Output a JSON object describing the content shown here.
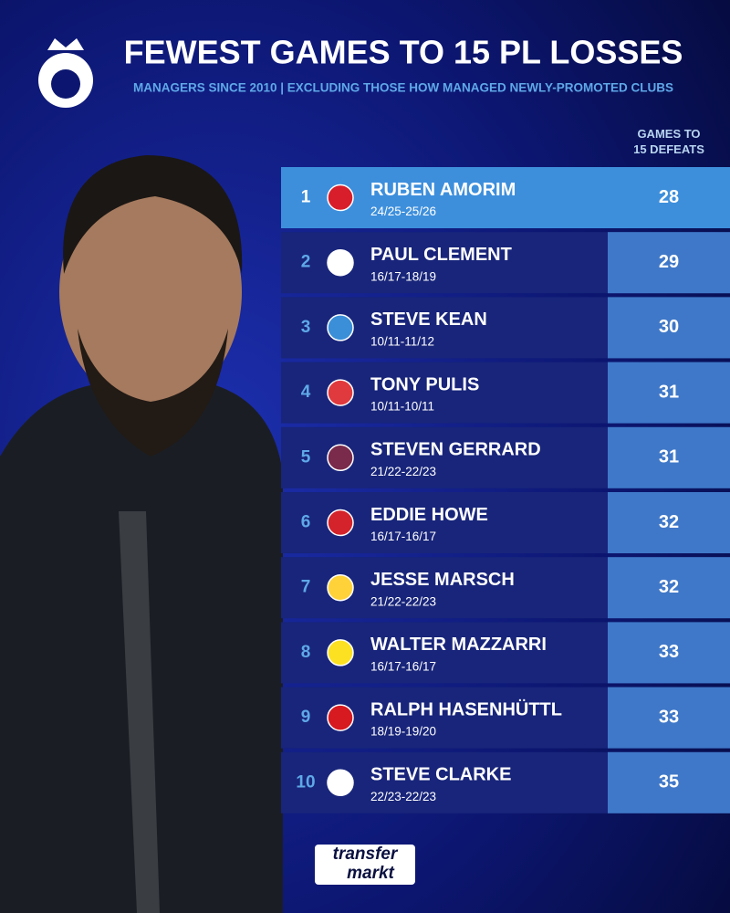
{
  "header": {
    "title": "FEWEST GAMES TO 15 PL LOSSES",
    "subtitle": "MANAGERS SINCE 2010 | EXCLUDING THOSE HOW MANAGED NEWLY-PROMOTED CLUBS"
  },
  "table": {
    "column_header": "GAMES TO 15 DEFEATS",
    "rows": [
      {
        "rank": 1,
        "name": "RUBEN AMORIM",
        "seasons": "24/25-25/26",
        "games": 28
      },
      {
        "rank": 2,
        "name": "PAUL CLEMENT",
        "seasons": "16/17-18/19",
        "games": 29
      },
      {
        "rank": 3,
        "name": "STEVE KEAN",
        "seasons": "10/11-11/12",
        "games": 30
      },
      {
        "rank": 4,
        "name": "TONY PULIS",
        "seasons": "10/11-10/11",
        "games": 31
      },
      {
        "rank": 5,
        "name": "STEVEN GERRARD",
        "seasons": "21/22-22/23",
        "games": 31
      },
      {
        "rank": 6,
        "name": "EDDIE HOWE",
        "seasons": "16/17-16/17",
        "games": 32
      },
      {
        "rank": 7,
        "name": "JESSE MARSCH",
        "seasons": "21/22-22/23",
        "games": 32
      },
      {
        "rank": 8,
        "name": "WALTER MAZZARRI",
        "seasons": "16/17-16/17",
        "games": 33
      },
      {
        "rank": 9,
        "name": "RALPH HASENHÜTTL",
        "seasons": "18/19-19/20",
        "games": 33
      },
      {
        "rank": 10,
        "name": "STEVE CLARKE",
        "seasons": "22/23-22/23",
        "games": 35
      }
    ]
  },
  "logo": {
    "line1": "transfer",
    "line2": "markt"
  }
}
